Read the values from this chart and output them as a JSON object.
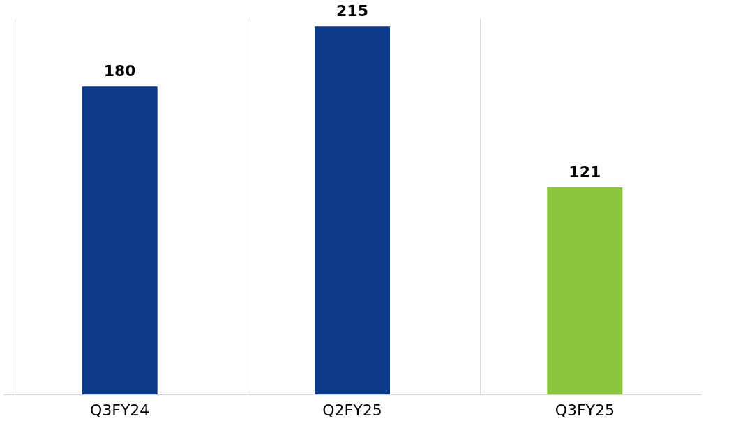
{
  "chart_data": {
    "type": "bar",
    "categories": [
      "Q3FY24",
      "Q2FY25",
      "Q3FY25"
    ],
    "values": [
      180,
      215,
      121
    ],
    "colors": [
      "#0b3a8a",
      "#0b3a8a",
      "#8cc63f"
    ],
    "data_labels": true,
    "grid": "x",
    "tick_labels": "x"
  }
}
